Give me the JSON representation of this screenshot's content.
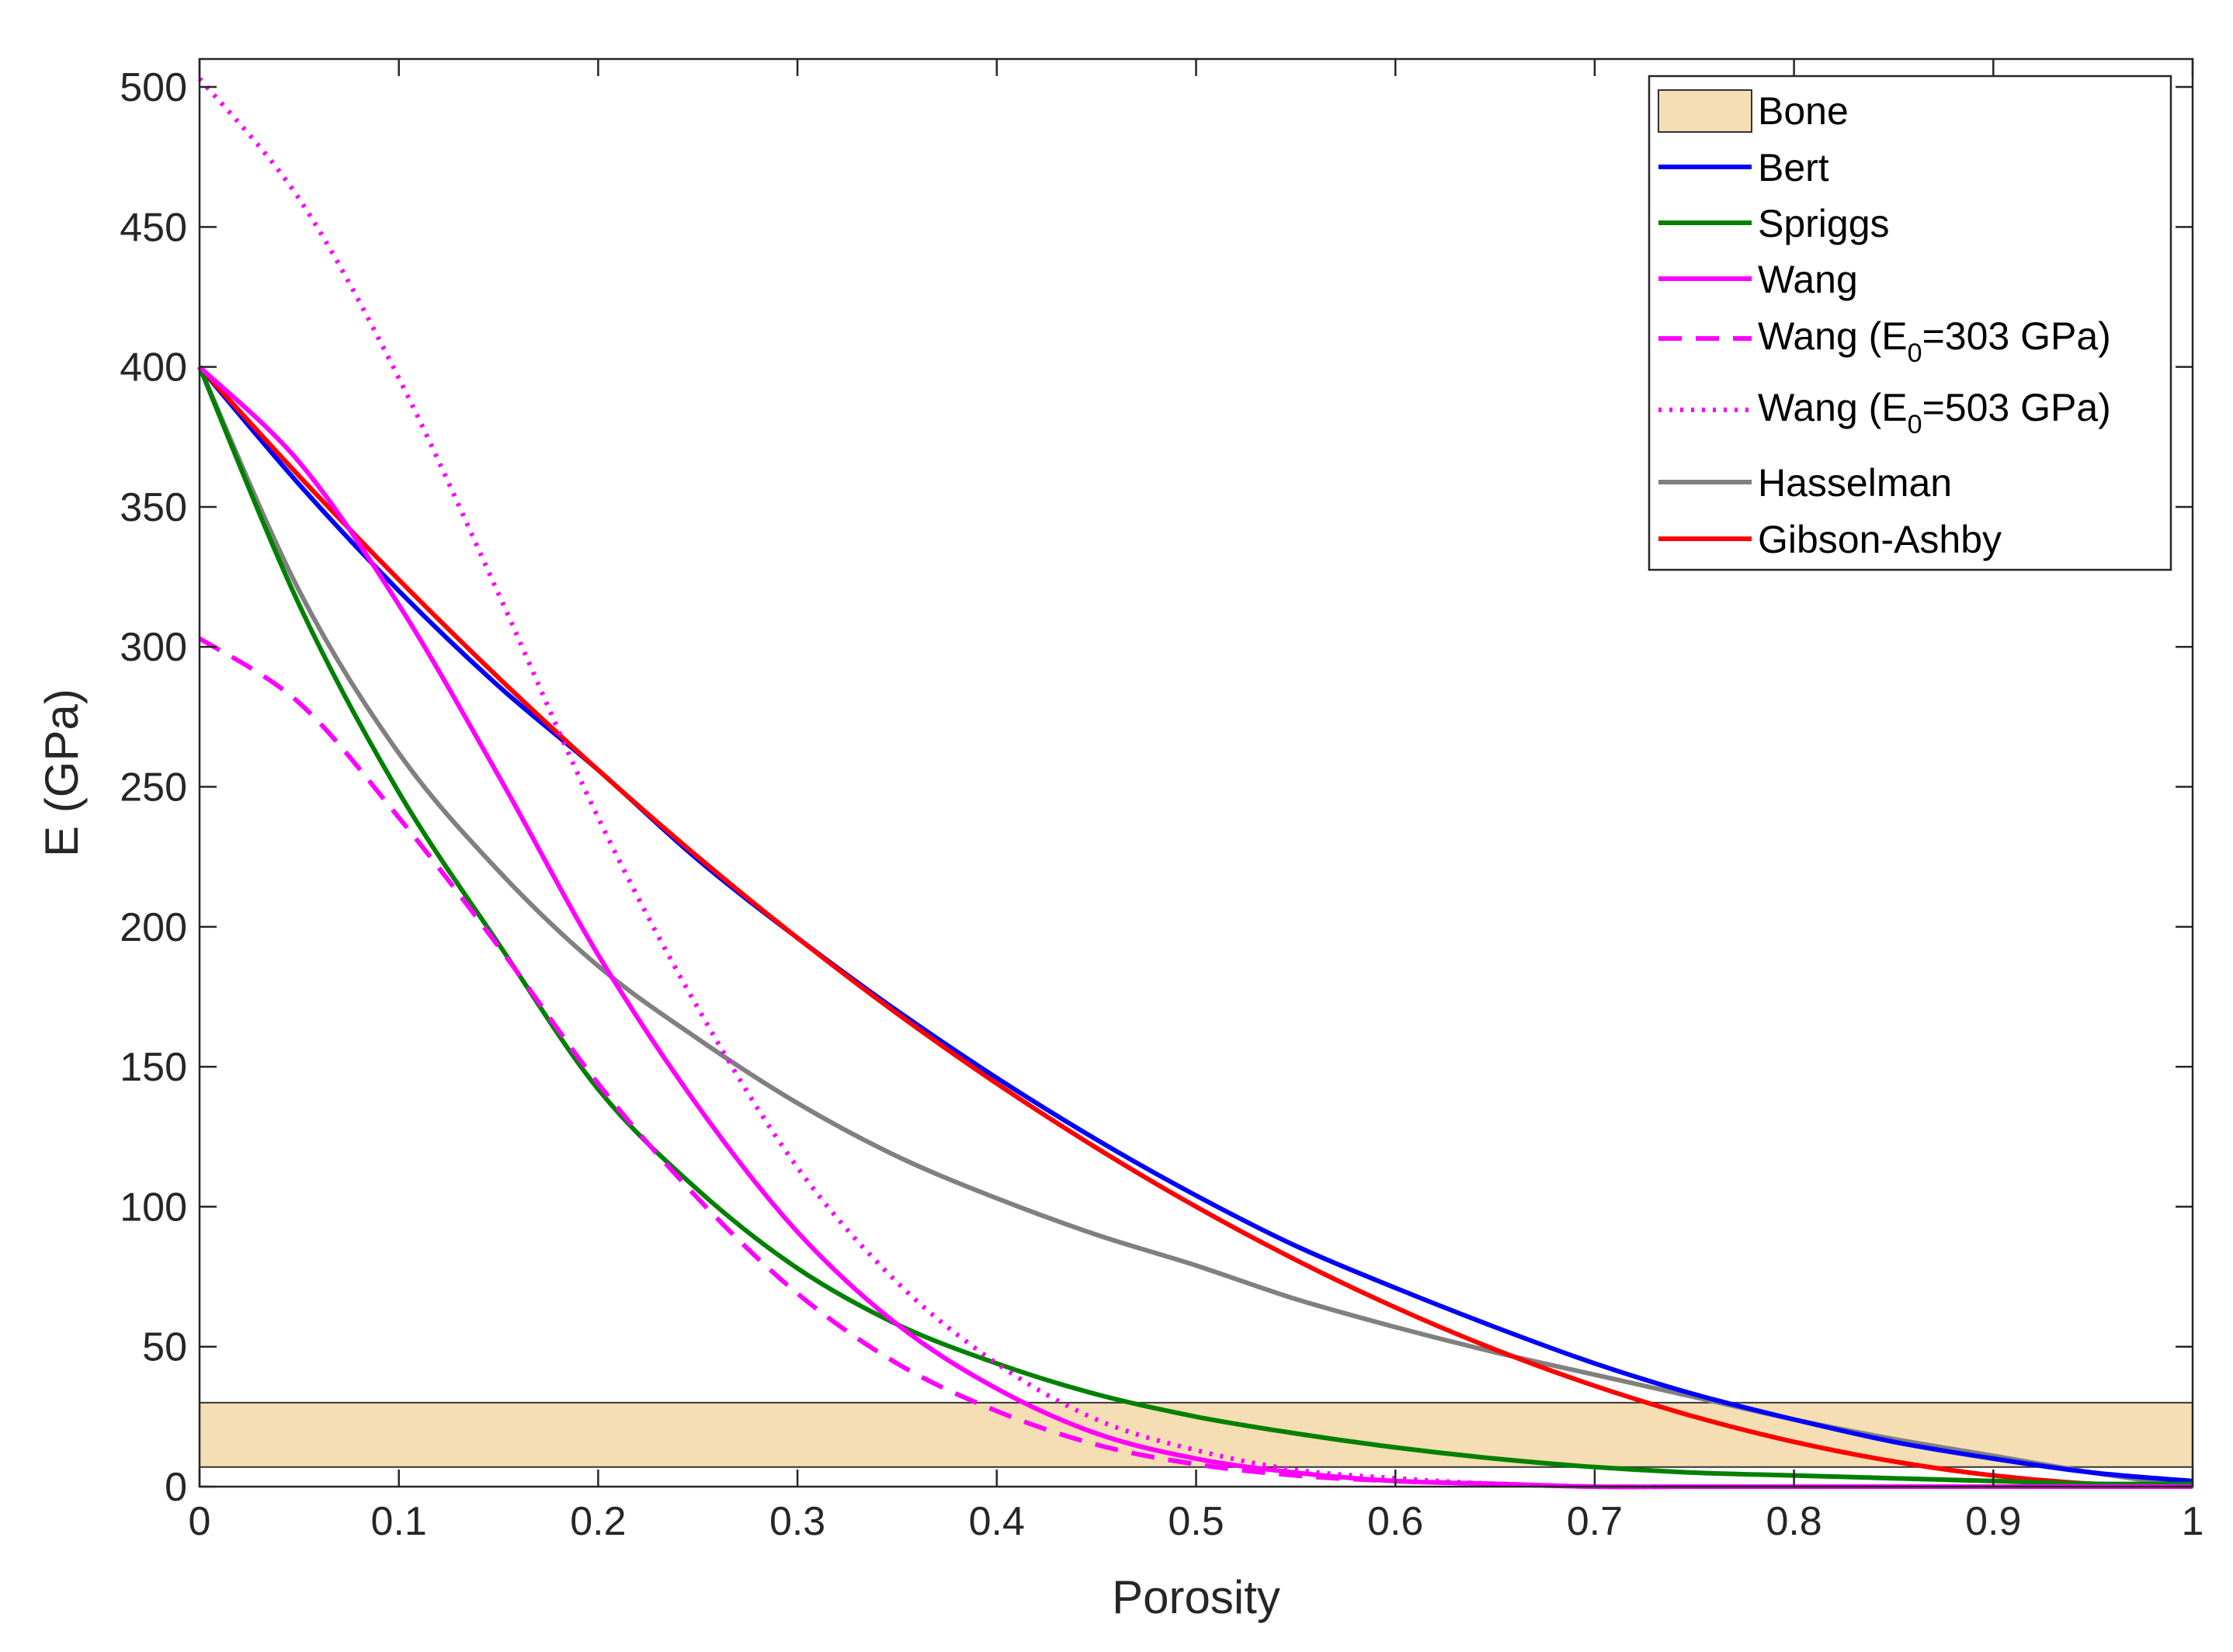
{
  "chart_data": {
    "type": "line",
    "title": "",
    "xlabel": "Porosity",
    "ylabel": "E (GPa)",
    "xlim": [
      0,
      1
    ],
    "ylim": [
      0,
      510
    ],
    "xticks": [
      0,
      0.1,
      0.2,
      0.3,
      0.4,
      0.5,
      0.6,
      0.7,
      0.8,
      0.9,
      1
    ],
    "xtick_labels": [
      "0",
      "0.1",
      "0.2",
      "0.3",
      "0.4",
      "0.5",
      "0.6",
      "0.7",
      "0.8",
      "0.9",
      "1"
    ],
    "yticks": [
      0,
      50,
      100,
      150,
      200,
      250,
      300,
      350,
      400,
      450,
      500
    ],
    "ytick_labels": [
      "0",
      "50",
      "100",
      "150",
      "200",
      "250",
      "300",
      "350",
      "400",
      "450",
      "500"
    ],
    "grid": false,
    "legend_position": "top-right",
    "band": {
      "name": "Bone",
      "y_range": [
        7,
        30
      ],
      "color": "#f5deb3"
    },
    "x": [
      0,
      0.05,
      0.1,
      0.15,
      0.2,
      0.25,
      0.3,
      0.35,
      0.4,
      0.45,
      0.5,
      0.55,
      0.6,
      0.65,
      0.7,
      0.75,
      0.8,
      0.85,
      0.9,
      0.95,
      1
    ],
    "series": [
      {
        "name": "Bert",
        "color": "#0000ff",
        "dash": "solid",
        "values": [
          400,
          358,
          320,
          286,
          256,
          224,
          196,
          170,
          146,
          124,
          104,
          86,
          71,
          57,
          44,
          33,
          24,
          16,
          10,
          5,
          2
        ]
      },
      {
        "name": "Spriggs",
        "color": "#008000",
        "dash": "solid",
        "values": [
          400,
          315,
          248,
          194,
          142,
          106,
          78,
          58,
          44,
          33,
          25,
          19,
          14,
          10,
          7,
          5,
          4,
          3,
          2,
          1,
          1
        ]
      },
      {
        "name": "Wang",
        "color": "#ff00ff",
        "dash": "solid",
        "values": [
          400,
          366,
          315,
          254,
          190,
          136,
          91,
          58,
          35,
          19,
          10,
          5,
          2,
          1,
          0,
          0,
          0,
          0,
          0,
          0,
          0
        ]
      },
      {
        "name": "Wang (E0=303 GPa)",
        "color": "#ff00ff",
        "dash": "dash",
        "values": [
          303,
          280,
          239,
          193,
          144,
          103,
          69,
          44,
          27,
          15,
          8,
          4,
          2,
          1,
          0,
          0,
          0,
          0,
          0,
          0,
          0
        ]
      },
      {
        "name": "Wang (E0=503 GPa)",
        "color": "#ff00ff",
        "dash": "dot",
        "values": [
          503,
          460,
          396,
          319,
          239,
          171,
          114,
          73,
          44,
          24,
          13,
          6,
          3,
          1,
          0,
          0,
          0,
          0,
          0,
          0,
          0
        ]
      },
      {
        "name": "Hasselman",
        "color": "#808080",
        "dash": "solid",
        "values": [
          400,
          320,
          262,
          220,
          186,
          160,
          137,
          118,
          103,
          90,
          79,
          67,
          57,
          48,
          40,
          32,
          24,
          17,
          11,
          5,
          0
        ]
      },
      {
        "name": "Gibson-Ashby",
        "color": "#ff0000",
        "dash": "solid",
        "values": [
          400,
          361,
          324,
          289,
          256,
          225,
          196,
          169,
          144,
          121,
          100,
          81,
          64,
          49,
          36,
          25,
          16,
          9,
          4,
          1,
          0
        ]
      }
    ]
  },
  "legend": {
    "bone": "Bone",
    "bert": "Bert",
    "spriggs": "Spriggs",
    "wang": "Wang",
    "wang303_pre": "Wang (E",
    "wang303_sub": "0",
    "wang303_post": "=303 GPa)",
    "wang503_pre": "Wang (E",
    "wang503_sub": "0",
    "wang503_post": "=503 GPa)",
    "hasselman": "Hasselman",
    "gibson": "Gibson-Ashby"
  }
}
